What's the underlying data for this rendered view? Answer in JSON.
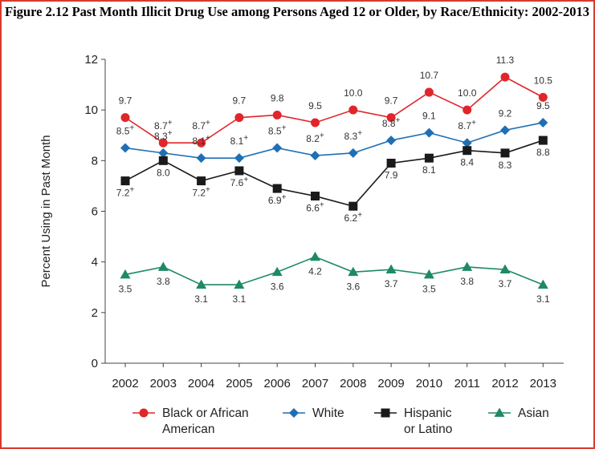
{
  "title": "Figure 2.12 Past Month Illicit Drug Use among Persons Aged 12 or Older, by Race/Ethnicity: 2002-2013",
  "chart_data": {
    "type": "line",
    "title": "Figure 2.12 Past Month Illicit Drug Use among Persons Aged 12 or Older, by Race/Ethnicity: 2002-2013",
    "xlabel": "",
    "ylabel": "Percent Using in Past Month",
    "ylim": [
      0,
      12
    ],
    "yticks": [
      0,
      2,
      4,
      6,
      8,
      10,
      12
    ],
    "categories": [
      "2002",
      "2003",
      "2004",
      "2005",
      "2006",
      "2007",
      "2008",
      "2009",
      "2010",
      "2011",
      "2012",
      "2013"
    ],
    "legend_position": "bottom",
    "series": [
      {
        "name": "Black or African American",
        "legend_lines": [
          "Black or African",
          "American"
        ],
        "color": "#e0262b",
        "marker": "circle",
        "values": [
          9.7,
          8.7,
          8.7,
          9.7,
          9.8,
          9.5,
          10.0,
          9.7,
          10.7,
          10.0,
          11.3,
          10.5
        ],
        "labels": [
          "9.7",
          "8.7",
          "8.7",
          "9.7",
          "9.8",
          "9.5",
          "10.0",
          "9.7",
          "10.7",
          "10.0",
          "11.3",
          "10.5"
        ],
        "sig": [
          false,
          true,
          true,
          false,
          false,
          false,
          false,
          false,
          false,
          false,
          false,
          false
        ]
      },
      {
        "name": "White",
        "legend_lines": [
          "White"
        ],
        "color": "#1f6fb5",
        "marker": "diamond",
        "values": [
          8.5,
          8.3,
          8.1,
          8.1,
          8.5,
          8.2,
          8.3,
          8.8,
          9.1,
          8.7,
          9.2,
          9.5
        ],
        "labels": [
          "8.5",
          "8.3",
          "8.1",
          "8.1",
          "8.5",
          "8.2",
          "8.3",
          "8.8",
          "9.1",
          "8.7",
          "9.2",
          "9.5"
        ],
        "sig": [
          true,
          true,
          true,
          true,
          true,
          true,
          true,
          true,
          false,
          true,
          false,
          false
        ]
      },
      {
        "name": "Hispanic or Latino",
        "legend_lines": [
          "Hispanic",
          "or Latino"
        ],
        "color": "#1a1a1a",
        "marker": "square",
        "values": [
          7.2,
          8.0,
          7.2,
          7.6,
          6.9,
          6.6,
          6.2,
          7.9,
          8.1,
          8.4,
          8.3,
          8.8
        ],
        "labels": [
          "7.2",
          "8.0",
          "7.2",
          "7.6",
          "6.9",
          "6.6",
          "6.2",
          "7.9",
          "8.1",
          "8.4",
          "8.3",
          "8.8"
        ],
        "sig": [
          true,
          false,
          true,
          true,
          true,
          true,
          true,
          false,
          false,
          false,
          false,
          false
        ]
      },
      {
        "name": "Asian",
        "legend_lines": [
          "Asian"
        ],
        "color": "#1e8a63",
        "marker": "triangle",
        "values": [
          3.5,
          3.8,
          3.1,
          3.1,
          3.6,
          4.2,
          3.6,
          3.7,
          3.5,
          3.8,
          3.7,
          3.1
        ],
        "labels": [
          "3.5",
          "3.8",
          "3.1",
          "3.1",
          "3.6",
          "4.2",
          "3.6",
          "3.7",
          "3.5",
          "3.8",
          "3.7",
          "3.1"
        ],
        "sig": [
          false,
          false,
          false,
          false,
          false,
          false,
          false,
          false,
          false,
          false,
          false,
          false
        ]
      }
    ],
    "sig_marker": "+"
  }
}
